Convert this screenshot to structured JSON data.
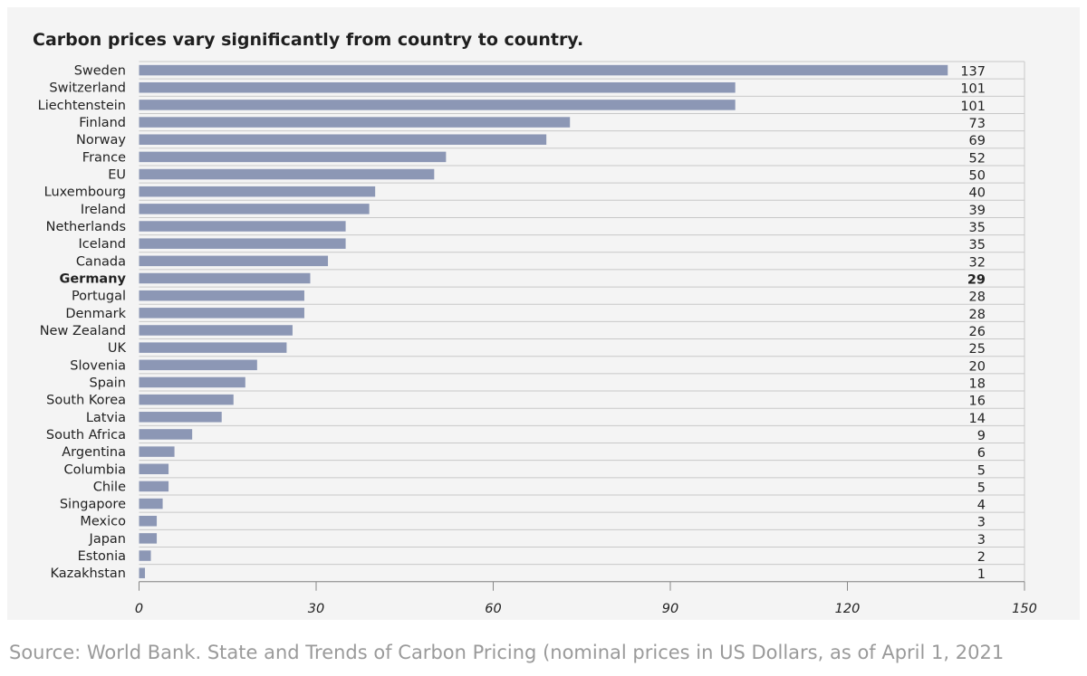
{
  "colors": {
    "bar": "#8c97b5",
    "grid": "#c8c8c8",
    "axis": "#888888",
    "text": "#222222",
    "panel": "#f4f4f4"
  },
  "source_text": "Source: World Bank. State and Trends of Carbon Pricing (nominal prices in US Dollars, as of April 1, 2021",
  "chart_data": {
    "type": "bar",
    "orientation": "horizontal",
    "title": "Carbon prices vary significantly from country to country.",
    "xlabel": "",
    "ylabel": "",
    "xlim": [
      0,
      150
    ],
    "xticks": [
      0,
      30,
      60,
      90,
      120,
      150
    ],
    "grid": true,
    "highlight": "Germany",
    "categories": [
      "Sweden",
      "Switzerland",
      "Liechtenstein",
      "Finland",
      "Norway",
      "France",
      "EU",
      "Luxembourg",
      "Ireland",
      "Netherlands",
      "Iceland",
      "Canada",
      "Germany",
      "Portugal",
      "Denmark",
      "New Zealand",
      "UK",
      "Slovenia",
      "Spain",
      "South Korea",
      "Latvia",
      "South Africa",
      "Argentina",
      "Columbia",
      "Chile",
      "Singapore",
      "Mexico",
      "Japan",
      "Estonia",
      "Kazakhstan"
    ],
    "values": [
      137,
      101,
      101,
      73,
      69,
      52,
      50,
      40,
      39,
      35,
      35,
      32,
      29,
      28,
      28,
      26,
      25,
      20,
      18,
      16,
      14,
      9,
      6,
      5,
      5,
      4,
      3,
      3,
      2,
      1
    ]
  }
}
